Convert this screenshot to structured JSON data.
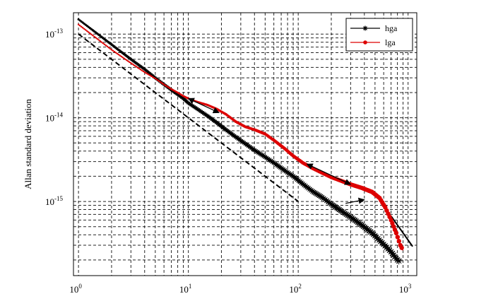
{
  "chart_data": {
    "type": "line",
    "title": "",
    "xlabel": "",
    "ylabel": "Allan standard deviation",
    "x_scale": "log",
    "y_scale": "log",
    "xlim": [
      0.9,
      1200
    ],
    "ylim": [
      1.3e-16,
      1.8e-13
    ],
    "grid": true,
    "legend_position": "top-right",
    "x_ticks": [
      {
        "value": 1,
        "base": "10",
        "exp": "0"
      },
      {
        "value": 10,
        "base": "10",
        "exp": "1"
      },
      {
        "value": 100,
        "base": "10",
        "exp": "2"
      },
      {
        "value": 1000,
        "base": "10",
        "exp": "3"
      }
    ],
    "y_ticks": [
      {
        "value": 1e-15,
        "base": "10",
        "exp": "-15"
      },
      {
        "value": 1e-14,
        "base": "10",
        "exp": "-14"
      },
      {
        "value": 1e-13,
        "base": "10",
        "exp": "-13"
      }
    ],
    "series": [
      {
        "name": "hga",
        "color": "#000000",
        "marker": "star",
        "points": [
          [
            1,
            1.5e-13
          ],
          [
            2,
            7.5e-14
          ],
          [
            3,
            5e-14
          ],
          [
            4,
            3.8e-14
          ],
          [
            5,
            3e-14
          ],
          [
            6,
            2.5e-14
          ],
          [
            7,
            2.15e-14
          ],
          [
            8,
            1.9e-14
          ],
          [
            9,
            1.7e-14
          ],
          [
            10,
            1.5e-14
          ],
          [
            12,
            1.28e-14
          ],
          [
            15,
            1.05e-14
          ],
          [
            18,
            8.8e-15
          ],
          [
            22,
            7.2e-15
          ],
          [
            27,
            5.9e-15
          ],
          [
            33,
            4.9e-15
          ],
          [
            40,
            4.1e-15
          ],
          [
            50,
            3.4e-15
          ],
          [
            60,
            2.9e-15
          ],
          [
            75,
            2.35e-15
          ],
          [
            90,
            2e-15
          ],
          [
            110,
            1.62e-15
          ],
          [
            135,
            1.32e-15
          ],
          [
            165,
            1.12e-15
          ],
          [
            200,
            9.3e-16
          ],
          [
            250,
            7.6e-16
          ],
          [
            300,
            6.5e-16
          ],
          [
            380,
            5.2e-16
          ],
          [
            470,
            4.2e-16
          ],
          [
            580,
            3.2e-16
          ],
          [
            700,
            2.5e-16
          ],
          [
            800,
            2e-16
          ],
          [
            850,
            1.9e-16
          ]
        ]
      },
      {
        "name": "lga",
        "color": "#dd0000",
        "marker": "dot",
        "points": [
          [
            1,
            1.3e-13
          ],
          [
            2,
            6.5e-14
          ],
          [
            3,
            4.5e-14
          ],
          [
            4,
            3.5e-14
          ],
          [
            5,
            2.95e-14
          ],
          [
            6,
            2.5e-14
          ],
          [
            7,
            2.2e-14
          ],
          [
            8,
            2e-14
          ],
          [
            9,
            1.82e-14
          ],
          [
            10,
            1.7e-14
          ],
          [
            12,
            1.55e-14
          ],
          [
            15,
            1.42e-14
          ],
          [
            18,
            1.28e-14
          ],
          [
            22,
            1.1e-14
          ],
          [
            27,
            9e-15
          ],
          [
            33,
            7.8e-15
          ],
          [
            40,
            7.2e-15
          ],
          [
            50,
            6.4e-15
          ],
          [
            60,
            5.4e-15
          ],
          [
            75,
            4.3e-15
          ],
          [
            90,
            3.5e-15
          ],
          [
            110,
            2.9e-15
          ],
          [
            135,
            2.5e-15
          ],
          [
            165,
            2.2e-15
          ],
          [
            200,
            1.95e-15
          ],
          [
            250,
            1.75e-15
          ],
          [
            300,
            1.6e-15
          ],
          [
            380,
            1.45e-15
          ],
          [
            470,
            1.3e-15
          ],
          [
            550,
            1.1e-15
          ],
          [
            620,
            8.5e-16
          ],
          [
            700,
            6e-16
          ],
          [
            780,
            4.2e-16
          ],
          [
            850,
            3e-16
          ],
          [
            900,
            2.6e-16
          ]
        ]
      }
    ],
    "reference_lines": [
      {
        "style": "dashed",
        "points": [
          [
            1,
            1e-13
          ],
          [
            100,
            1e-15
          ]
        ]
      },
      {
        "style": "solid",
        "points": [
          [
            700,
            6.7e-16
          ],
          [
            1100,
            2.9e-16
          ]
        ]
      }
    ],
    "annotations": [
      {
        "type": "double-arrow",
        "from": [
          10,
          1.7e-14
        ],
        "to": [
          19,
          1.15e-14
        ]
      },
      {
        "type": "double-arrow",
        "from": [
          120,
          2.8e-15
        ],
        "to": [
          300,
          1.6e-15
        ]
      },
      {
        "type": "arrow",
        "from": [
          270,
          9.5e-16
        ],
        "to": [
          400,
          1.05e-15
        ]
      }
    ],
    "legend": [
      {
        "label": "hga",
        "color": "#000000",
        "marker": "star"
      },
      {
        "label": "lga",
        "color": "#dd0000",
        "marker": "dot"
      }
    ]
  }
}
